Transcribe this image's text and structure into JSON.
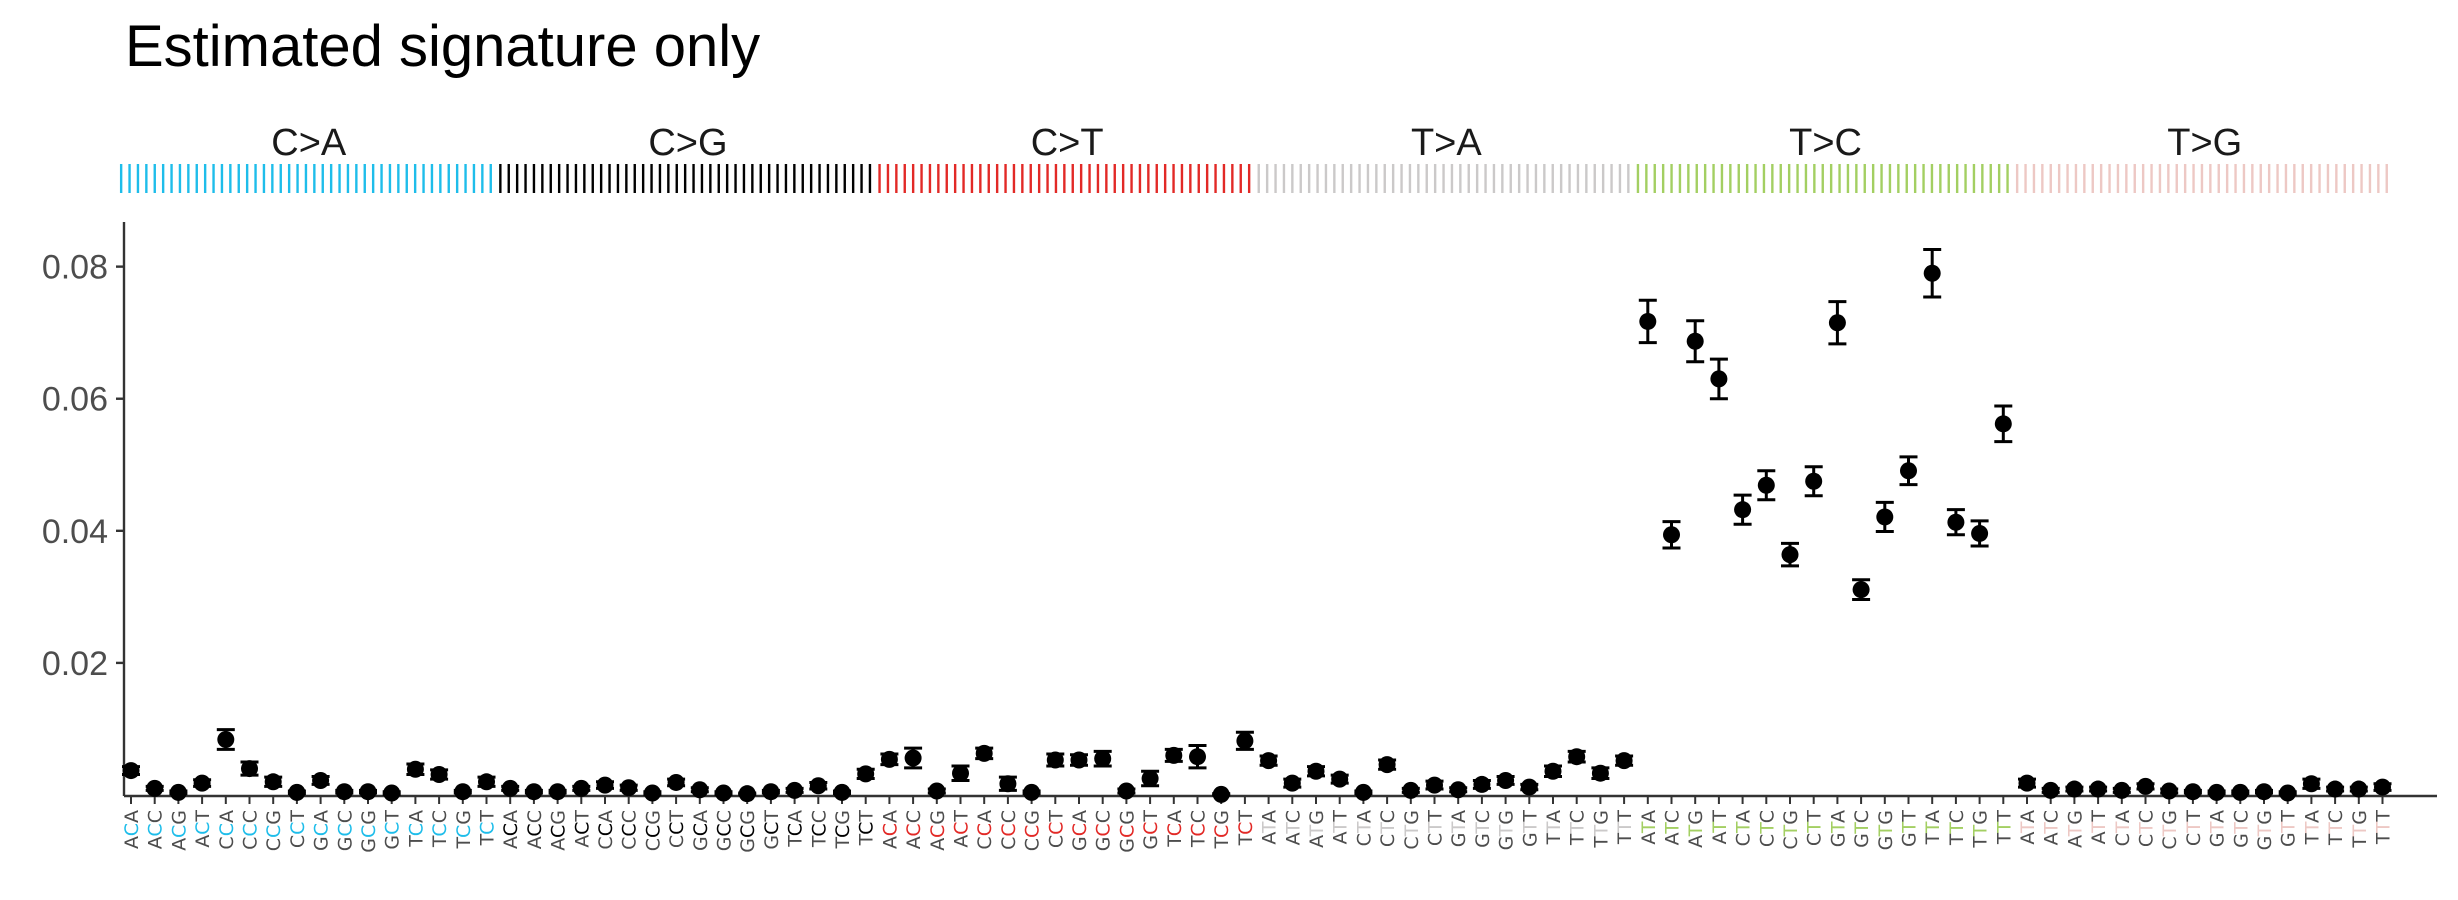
{
  "chart_data": {
    "type": "scatter",
    "title": "Estimated signature only",
    "xlabel": "",
    "ylabel": "",
    "ylim": [
      0,
      0.086
    ],
    "yticks": [
      0.02,
      0.04,
      0.06,
      0.08
    ],
    "ytick_labels": [
      "0.02",
      "0.04",
      "0.06",
      "0.08"
    ],
    "grid": false,
    "legend": "none",
    "groups": [
      {
        "label": "C>A",
        "color": "#1ebdea",
        "ref": "C"
      },
      {
        "label": "C>G",
        "color": "#000000",
        "ref": "C"
      },
      {
        "label": "C>T",
        "color": "#e22926",
        "ref": "C"
      },
      {
        "label": "T>A",
        "color": "#cbc9c9",
        "ref": "T"
      },
      {
        "label": "T>C",
        "color": "#a3cf62",
        "ref": "T"
      },
      {
        "label": "T>G",
        "color": "#edc8c4",
        "ref": "T"
      }
    ],
    "flanks": [
      "A_A",
      "A_C",
      "A_G",
      "A_T",
      "C_A",
      "C_C",
      "C_G",
      "C_T",
      "G_A",
      "G_C",
      "G_G",
      "G_T",
      "T_A",
      "T_C",
      "T_G",
      "T_T"
    ],
    "point_color": "#000000",
    "values": [
      0.0037,
      0.001,
      0.0004,
      0.0018,
      0.0084,
      0.004,
      0.002,
      0.0004,
      0.0022,
      0.0005,
      0.0005,
      0.0003,
      0.0039,
      0.0031,
      0.0005,
      0.002,
      0.001,
      0.0005,
      0.0005,
      0.001,
      0.0015,
      0.0011,
      0.0003,
      0.0019,
      0.0008,
      0.0003,
      0.0002,
      0.0005,
      0.0007,
      0.0014,
      0.0004,
      0.0032,
      0.0054,
      0.0056,
      0.0006,
      0.0033,
      0.0063,
      0.0017,
      0.0004,
      0.0053,
      0.0053,
      0.0055,
      0.0006,
      0.0025,
      0.006,
      0.0058,
      0.0001,
      0.0082,
      0.0052,
      0.0018,
      0.0036,
      0.0024,
      0.0004,
      0.0046,
      0.0007,
      0.0015,
      0.0008,
      0.0016,
      0.0022,
      0.0012,
      0.0036,
      0.0058,
      0.0033,
      0.0052,
      0.0717,
      0.0394,
      0.0687,
      0.063,
      0.0432,
      0.0469,
      0.0364,
      0.0475,
      0.0715,
      0.0311,
      0.0421,
      0.0491,
      0.079,
      0.0413,
      0.0396,
      0.0562,
      0.0018,
      0.0007,
      0.0009,
      0.0009,
      0.0007,
      0.0013,
      0.0006,
      0.0005,
      0.0004,
      0.0004,
      0.0005,
      0.0003,
      0.0017,
      0.0009,
      0.0009,
      0.0012
    ],
    "error_low": [
      0.0031,
      0.0007,
      0.0002,
      0.0013,
      0.0069,
      0.003,
      0.0013,
      0.0002,
      0.0016,
      0.0003,
      0.0003,
      0.0001,
      0.0031,
      0.0024,
      0.0003,
      0.0013,
      0.0007,
      0.0003,
      0.0003,
      0.0007,
      0.001,
      0.0007,
      0.0001,
      0.0014,
      0.0005,
      0.0001,
      0.0001,
      0.0003,
      0.0004,
      0.0009,
      0.0002,
      0.0025,
      0.0046,
      0.0041,
      0.0003,
      0.0022,
      0.0055,
      0.0007,
      0.0002,
      0.0044,
      0.0045,
      0.0044,
      0.0003,
      0.0014,
      0.0051,
      0.0041,
      0.0,
      0.0069,
      0.0045,
      0.0012,
      0.0029,
      0.0018,
      0.0002,
      0.0039,
      0.0004,
      0.0009,
      0.0005,
      0.001,
      0.0016,
      0.0008,
      0.0028,
      0.005,
      0.0025,
      0.0045,
      0.0685,
      0.0374,
      0.0656,
      0.06,
      0.041,
      0.0447,
      0.0347,
      0.0453,
      0.0683,
      0.0296,
      0.0399,
      0.047,
      0.0754,
      0.0394,
      0.0377,
      0.0535,
      0.0012,
      0.0004,
      0.0006,
      0.0006,
      0.0004,
      0.0009,
      0.0003,
      0.0003,
      0.0002,
      0.0002,
      0.0003,
      0.0001,
      0.001,
      0.0006,
      0.0006,
      0.0007
    ],
    "error_high": [
      0.0043,
      0.0013,
      0.0006,
      0.0023,
      0.0099,
      0.005,
      0.0027,
      0.0006,
      0.0028,
      0.0007,
      0.0007,
      0.0005,
      0.0047,
      0.0038,
      0.0007,
      0.0027,
      0.0013,
      0.0007,
      0.0007,
      0.0013,
      0.002,
      0.0015,
      0.0005,
      0.0024,
      0.0011,
      0.0005,
      0.0003,
      0.0007,
      0.001,
      0.0019,
      0.0006,
      0.0039,
      0.0062,
      0.0071,
      0.0009,
      0.0044,
      0.0071,
      0.0027,
      0.0006,
      0.0062,
      0.0061,
      0.0066,
      0.0009,
      0.0036,
      0.0069,
      0.0075,
      0.0002,
      0.0095,
      0.0059,
      0.0024,
      0.0043,
      0.003,
      0.0006,
      0.0053,
      0.001,
      0.0021,
      0.0011,
      0.0022,
      0.0028,
      0.0016,
      0.0044,
      0.0066,
      0.0041,
      0.0059,
      0.0749,
      0.0414,
      0.0718,
      0.066,
      0.0454,
      0.0491,
      0.0381,
      0.0497,
      0.0747,
      0.0326,
      0.0443,
      0.0512,
      0.0826,
      0.0432,
      0.0415,
      0.0589,
      0.0024,
      0.001,
      0.0012,
      0.0012,
      0.001,
      0.0017,
      0.0009,
      0.0007,
      0.0006,
      0.0006,
      0.0007,
      0.0005,
      0.0024,
      0.0012,
      0.0012,
      0.0017
    ]
  }
}
